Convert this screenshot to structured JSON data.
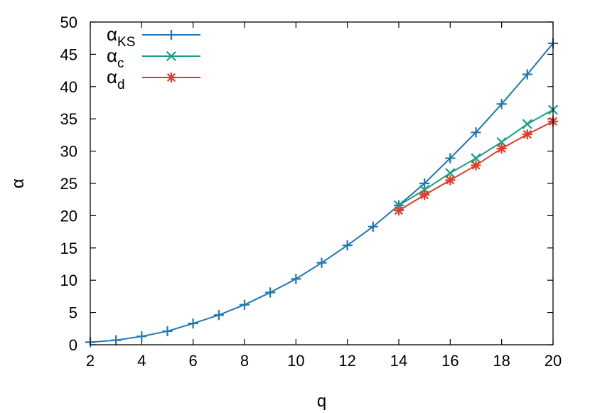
{
  "chart_data": {
    "type": "line",
    "xlabel": "q",
    "ylabel": "α",
    "xlim": [
      2,
      20
    ],
    "ylim": [
      0,
      50
    ],
    "xticks": [
      2,
      4,
      6,
      8,
      10,
      12,
      14,
      16,
      18,
      20
    ],
    "yticks": [
      0,
      5,
      10,
      15,
      20,
      25,
      30,
      35,
      40,
      45,
      50
    ],
    "grid": false,
    "legend": "top-left",
    "series": [
      {
        "name": "α",
        "subscript": "KS",
        "color": "#1f77b4",
        "marker": "plus",
        "x": [
          2,
          3,
          4,
          5,
          6,
          7,
          8,
          9,
          10,
          11,
          12,
          13,
          14,
          15,
          16,
          17,
          18,
          19,
          20
        ],
        "y": [
          0.4,
          0.7,
          1.3,
          2.1,
          3.3,
          4.6,
          6.2,
          8.1,
          10.2,
          12.7,
          15.4,
          18.3,
          21.6,
          25.0,
          28.9,
          32.9,
          37.3,
          41.9,
          46.7
        ]
      },
      {
        "name": "α",
        "subscript": "c",
        "color": "#16a085",
        "marker": "cross",
        "x": [
          14,
          15,
          16,
          17,
          18,
          19,
          20
        ],
        "y": [
          21.6,
          24.0,
          26.6,
          28.9,
          31.4,
          34.2,
          36.4
        ]
      },
      {
        "name": "α",
        "subscript": "d",
        "color": "#e23b2a",
        "marker": "star",
        "x": [
          14,
          15,
          16,
          17,
          18,
          19,
          20
        ],
        "y": [
          20.8,
          23.2,
          25.5,
          27.8,
          30.4,
          32.6,
          34.6
        ]
      }
    ]
  }
}
